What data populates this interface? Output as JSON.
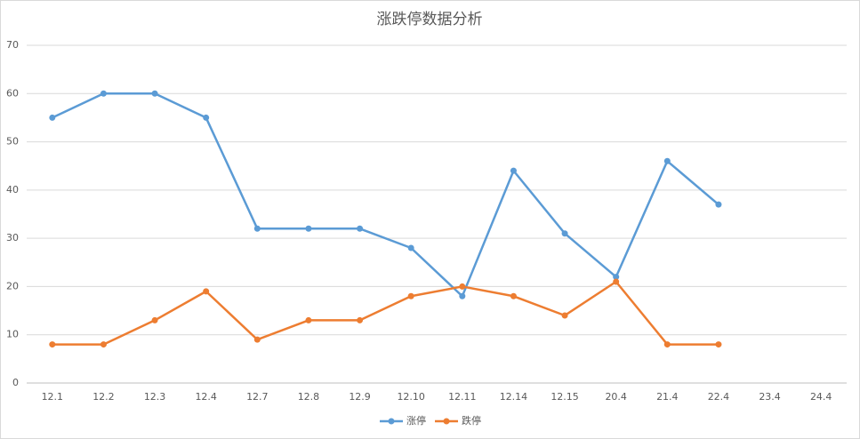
{
  "chart_data": {
    "type": "line",
    "title": "涨跌停数据分析",
    "categories": [
      "12.1",
      "12.2",
      "12.3",
      "12.4",
      "12.7",
      "12.8",
      "12.9",
      "12.10",
      "12.11",
      "12.14",
      "12.15",
      "20.4",
      "21.4",
      "22.4",
      "23.4",
      "24.4"
    ],
    "series": [
      {
        "name": "涨停",
        "color": "#5b9bd5",
        "values": [
          55,
          60,
          60,
          55,
          32,
          32,
          32,
          28,
          18,
          44,
          31,
          22,
          46,
          37,
          null,
          null
        ]
      },
      {
        "name": "跌停",
        "color": "#ed7d31",
        "values": [
          8,
          8,
          13,
          19,
          9,
          13,
          13,
          18,
          20,
          18,
          14,
          21,
          8,
          8,
          null,
          null
        ]
      }
    ],
    "ylim": [
      0,
      70
    ],
    "yticks": [
      0,
      10,
      20,
      30,
      40,
      50,
      60,
      70
    ],
    "grid": true,
    "legend": "bottom"
  }
}
